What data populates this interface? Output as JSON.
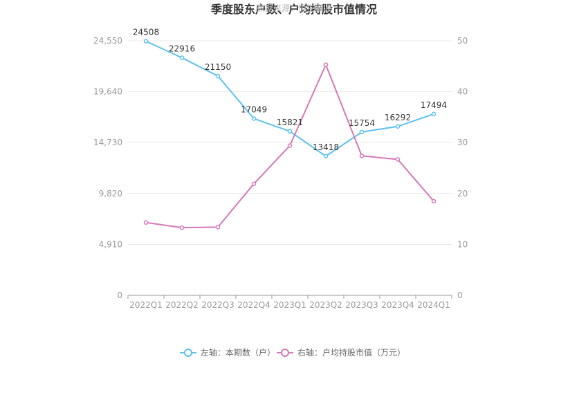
{
  "chart_data": {
    "type": "line",
    "title": "季度股东户数、户均持股市值情况",
    "watermark": "数据来源：恒生聚源",
    "categories": [
      "2022Q1",
      "2022Q2",
      "2022Q3",
      "2022Q4",
      "2023Q1",
      "2023Q2",
      "2023Q3",
      "2023Q4",
      "2024Q1"
    ],
    "left_axis": {
      "ylim": [
        0,
        24550
      ],
      "ticks": [
        "0",
        "4,910",
        "9,820",
        "14,730",
        "19,640",
        "24,550"
      ],
      "tick_values": [
        0,
        4910,
        9820,
        14730,
        19640,
        24550
      ]
    },
    "right_axis": {
      "ylim": [
        0,
        50
      ],
      "ticks": [
        "0",
        "10",
        "20",
        "30",
        "40",
        "50"
      ],
      "tick_values": [
        0,
        10,
        20,
        30,
        40,
        50
      ]
    },
    "series": [
      {
        "name": "左轴：本期数（户）",
        "axis": "left",
        "color": "#5bc0f0",
        "values": [
          24508,
          22916,
          21150,
          17049,
          15821,
          13418,
          15754,
          16292,
          17494
        ],
        "labels": [
          "24508",
          "22916",
          "21150",
          "17049",
          "15821",
          "13418",
          "15754",
          "16292",
          "17494"
        ]
      },
      {
        "name": "右轴：户均持股市值（万元）",
        "axis": "right",
        "color": "#d677b8",
        "values": [
          14.3,
          13.3,
          13.4,
          21.9,
          29.4,
          45.3,
          27.4,
          26.7,
          18.5
        ]
      }
    ],
    "grid": true,
    "legend_position": "bottom"
  }
}
